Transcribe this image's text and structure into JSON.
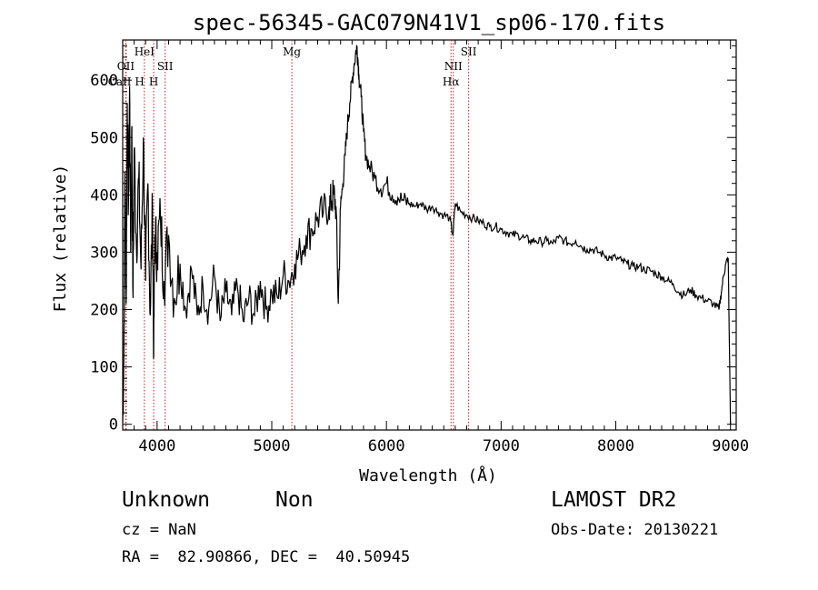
{
  "chart_data": {
    "type": "line",
    "title": "spec-56345-GAC079N41V1_sp06-170.fits",
    "xlabel": "Wavelength (Å)",
    "ylabel": "Flux (relative)",
    "xlim": [
      3700,
      9050
    ],
    "ylim": [
      -10,
      670
    ],
    "xticks": [
      4000,
      5000,
      6000,
      7000,
      8000,
      9000
    ],
    "yticks": [
      0,
      100,
      200,
      300,
      400,
      500,
      600
    ],
    "xtick_labels": [
      "4000",
      "5000",
      "6000",
      "7000",
      "8000",
      "9000"
    ],
    "ytick_labels": [
      "0",
      "100",
      "200",
      "300",
      "400",
      "500",
      "600"
    ],
    "grid": false,
    "line_color": "#000000",
    "marker_color": "#b22222",
    "series": [
      {
        "x": [
          3700,
          3710,
          3720,
          3730,
          3740,
          3750,
          3760,
          3770,
          3780,
          3790,
          3800,
          3820,
          3840,
          3860,
          3880,
          3900,
          3920,
          3940,
          3960,
          3970,
          3980,
          4000,
          4030,
          4060,
          4100,
          4150,
          4200,
          4250,
          4300,
          4350,
          4400,
          4450,
          4500,
          4550,
          4600,
          4650,
          4700,
          4750,
          4800,
          4850,
          4900,
          4950,
          5000,
          5050,
          5100,
          5150,
          5200,
          5250,
          5300,
          5350,
          5400,
          5450,
          5500,
          5520,
          5540,
          5560,
          5580,
          5600,
          5620,
          5640,
          5660,
          5680,
          5700,
          5720,
          5740,
          5750,
          5760,
          5780,
          5800,
          5820,
          5850,
          5900,
          5950,
          6000,
          6050,
          6100,
          6150,
          6200,
          6250,
          6300,
          6350,
          6400,
          6450,
          6500,
          6550,
          6580,
          6600,
          6650,
          6700,
          6750,
          6800,
          6850,
          6900,
          6950,
          7000,
          7050,
          7100,
          7150,
          7200,
          7250,
          7300,
          7350,
          7400,
          7450,
          7500,
          7550,
          7600,
          7650,
          7700,
          7750,
          7800,
          7850,
          7900,
          7950,
          8000,
          8050,
          8100,
          8150,
          8200,
          8250,
          8300,
          8350,
          8400,
          8450,
          8500,
          8550,
          8600,
          8650,
          8700,
          8750,
          8800,
          8850,
          8900,
          8920,
          8940,
          8960,
          8980,
          9000
        ],
        "y": [
          5,
          120,
          440,
          210,
          560,
          380,
          590,
          300,
          520,
          220,
          480,
          310,
          430,
          270,
          500,
          250,
          420,
          190,
          380,
          120,
          330,
          300,
          360,
          250,
          330,
          220,
          280,
          200,
          270,
          190,
          240,
          200,
          260,
          180,
          230,
          190,
          240,
          180,
          220,
          190,
          250,
          200,
          230,
          220,
          260,
          250,
          280,
          300,
          330,
          340,
          360,
          370,
          380,
          390,
          400,
          380,
          210,
          380,
          420,
          470,
          520,
          560,
          600,
          630,
          660,
          640,
          610,
          570,
          510,
          470,
          450,
          430,
          410,
          420,
          400,
          395,
          390,
          385,
          380,
          385,
          375,
          380,
          370,
          365,
          360,
          330,
          385,
          370,
          365,
          360,
          355,
          350,
          345,
          345,
          340,
          335,
          330,
          330,
          325,
          320,
          320,
          318,
          320,
          315,
          325,
          320,
          315,
          320,
          310,
          305,
          305,
          300,
          295,
          290,
          290,
          285,
          280,
          275,
          275,
          270,
          268,
          262,
          258,
          250,
          245,
          230,
          225,
          235,
          225,
          220,
          215,
          210,
          200,
          230,
          260,
          280,
          290,
          0
        ]
      }
    ],
    "line_markers": [
      {
        "label": "OII",
        "x": 3727,
        "row": 1
      },
      {
        "label": "CaII H",
        "x": 3730,
        "row": 2
      },
      {
        "label": "HeI",
        "x": 3889,
        "row": 0
      },
      {
        "label": "H",
        "x": 3970,
        "row": 2
      },
      {
        "label": "SII",
        "x": 4070,
        "row": 1
      },
      {
        "label": "Mg",
        "x": 5175,
        "row": 0
      },
      {
        "label": "NII",
        "x": 6583,
        "row": 1
      },
      {
        "label": "Hα",
        "x": 6563,
        "row": 2
      },
      {
        "label": "SII",
        "x": 6717,
        "row": 0
      }
    ]
  },
  "info": {
    "class_label": "Unknown",
    "subclass_label": "Non",
    "cz": "cz = NaN",
    "coords": "RA =  82.90866, DEC =  40.50945",
    "survey": "LAMOST DR2",
    "obs_date": "Obs-Date: 20130221"
  }
}
